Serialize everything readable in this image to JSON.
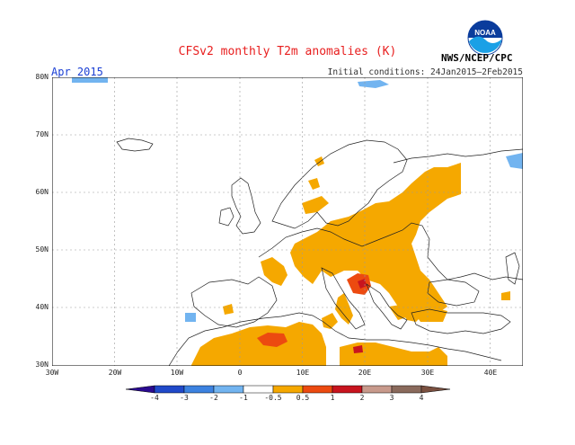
{
  "title": "CFSv2 monthly T2m anomalies (K)",
  "left_title": "Apr 2015",
  "right_title": "Initial conditions: 24Jan2015–2Feb2015",
  "agency": "NWS/NCEP/CPC",
  "logo_text": "NOAA",
  "lat_labels": [
    "80N",
    "70N",
    "60N",
    "50N",
    "40N",
    "30N"
  ],
  "lon_labels": [
    "30W",
    "20W",
    "10W",
    "0",
    "10E",
    "20E",
    "30E",
    "40E"
  ],
  "colorbar": {
    "labels": [
      "-4",
      "-3",
      "-2",
      "-1",
      "-0.5",
      "0.5",
      "1",
      "2",
      "3",
      "4"
    ],
    "colors": [
      "#3a1fb2",
      "#2049c9",
      "#3c82e0",
      "#72b4f0",
      "#ffffff",
      "#f5a800",
      "#ec4a10",
      "#c8141e",
      "#c89a8c",
      "#8a6a5c"
    ],
    "under_color": "#2a0a90",
    "over_color": "#7a5040"
  },
  "anomaly_colors": {
    "blue": "#72b4f0",
    "orange": "#f5a800",
    "red": "#ec4a10",
    "darkred": "#c8141e"
  }
}
